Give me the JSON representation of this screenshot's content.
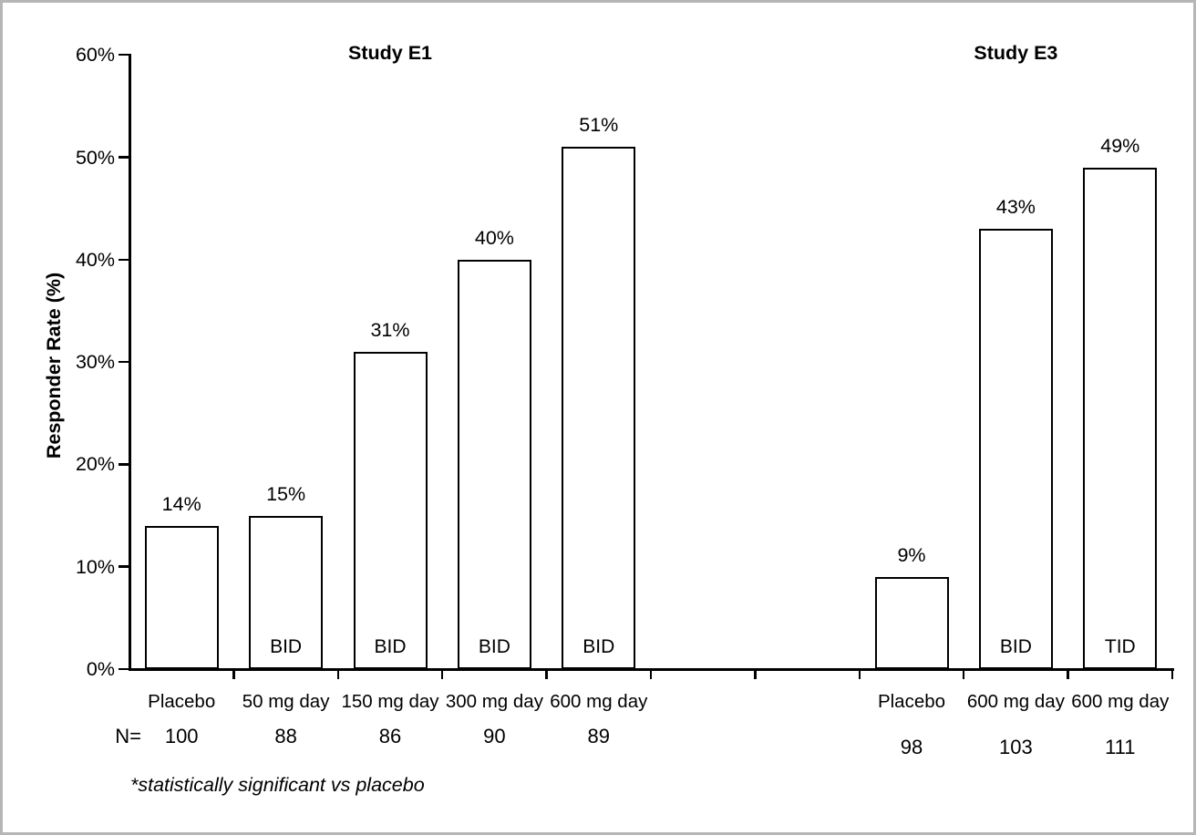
{
  "frame": {
    "background": "#ffffff",
    "border_color": "#b6b6b6",
    "axis_color": "#000000",
    "text_color": "#000000"
  },
  "chart_data": {
    "type": "bar",
    "ylabel": "Responder Rate (%)",
    "ylim": [
      0,
      60
    ],
    "y_tick_step": 10,
    "y_ticks_percent": [
      "0%",
      "10%",
      "20%",
      "30%",
      "40%",
      "50%",
      "60%"
    ],
    "grid": false,
    "legend": "none",
    "bar_fill": "#ffffff",
    "bar_border": "#000000",
    "groups": [
      {
        "title": "Study E1",
        "categories": [
          "Placebo",
          "50 mg day",
          "150 mg day",
          "300 mg day",
          "600 mg day"
        ],
        "values": [
          14,
          15,
          31,
          40,
          51
        ],
        "value_labels": [
          "14%",
          "15%",
          "31%",
          "40%",
          "51%"
        ],
        "regimen_labels": [
          "",
          "BID",
          "BID",
          "BID",
          "BID"
        ],
        "n_values": [
          "100",
          "88",
          "86",
          "90",
          "89"
        ]
      },
      {
        "title": "Study E3",
        "categories": [
          "Placebo",
          "600 mg day",
          "600 mg day"
        ],
        "values": [
          9,
          43,
          49
        ],
        "value_labels": [
          "9%",
          "43%",
          "49%"
        ],
        "regimen_labels": [
          "",
          "BID",
          "TID"
        ],
        "n_values": [
          "98",
          "103",
          "111"
        ]
      }
    ],
    "n_prefix": "N=",
    "footnote": "*statistically significant vs placebo"
  }
}
